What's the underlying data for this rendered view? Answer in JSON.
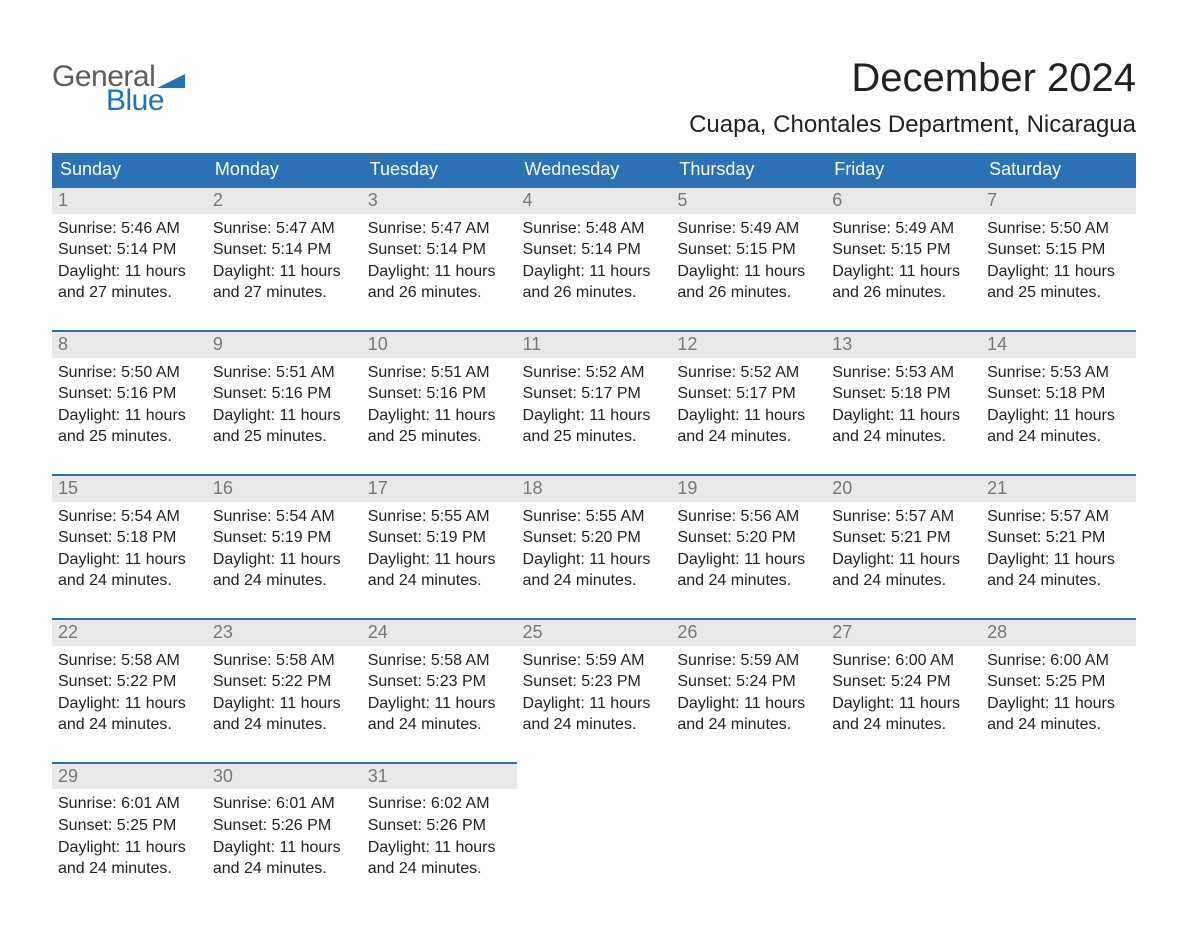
{
  "logo": {
    "line1": "General",
    "line2": "Blue"
  },
  "header": {
    "month_title": "December 2024",
    "location": "Cuapa, Chontales Department, Nicaragua"
  },
  "calendar": {
    "day_headers": [
      "Sunday",
      "Monday",
      "Tuesday",
      "Wednesday",
      "Thursday",
      "Friday",
      "Saturday"
    ],
    "labels": {
      "sunrise": "Sunrise:",
      "sunset": "Sunset:",
      "daylight": "Daylight:"
    },
    "start_day_index": 0,
    "days": [
      {
        "n": 1,
        "sunrise": "5:46 AM",
        "sunset": "5:14 PM",
        "daylight": "11 hours and 27 minutes."
      },
      {
        "n": 2,
        "sunrise": "5:47 AM",
        "sunset": "5:14 PM",
        "daylight": "11 hours and 27 minutes."
      },
      {
        "n": 3,
        "sunrise": "5:47 AM",
        "sunset": "5:14 PM",
        "daylight": "11 hours and 26 minutes."
      },
      {
        "n": 4,
        "sunrise": "5:48 AM",
        "sunset": "5:14 PM",
        "daylight": "11 hours and 26 minutes."
      },
      {
        "n": 5,
        "sunrise": "5:49 AM",
        "sunset": "5:15 PM",
        "daylight": "11 hours and 26 minutes."
      },
      {
        "n": 6,
        "sunrise": "5:49 AM",
        "sunset": "5:15 PM",
        "daylight": "11 hours and 26 minutes."
      },
      {
        "n": 7,
        "sunrise": "5:50 AM",
        "sunset": "5:15 PM",
        "daylight": "11 hours and 25 minutes."
      },
      {
        "n": 8,
        "sunrise": "5:50 AM",
        "sunset": "5:16 PM",
        "daylight": "11 hours and 25 minutes."
      },
      {
        "n": 9,
        "sunrise": "5:51 AM",
        "sunset": "5:16 PM",
        "daylight": "11 hours and 25 minutes."
      },
      {
        "n": 10,
        "sunrise": "5:51 AM",
        "sunset": "5:16 PM",
        "daylight": "11 hours and 25 minutes."
      },
      {
        "n": 11,
        "sunrise": "5:52 AM",
        "sunset": "5:17 PM",
        "daylight": "11 hours and 25 minutes."
      },
      {
        "n": 12,
        "sunrise": "5:52 AM",
        "sunset": "5:17 PM",
        "daylight": "11 hours and 24 minutes."
      },
      {
        "n": 13,
        "sunrise": "5:53 AM",
        "sunset": "5:18 PM",
        "daylight": "11 hours and 24 minutes."
      },
      {
        "n": 14,
        "sunrise": "5:53 AM",
        "sunset": "5:18 PM",
        "daylight": "11 hours and 24 minutes."
      },
      {
        "n": 15,
        "sunrise": "5:54 AM",
        "sunset": "5:18 PM",
        "daylight": "11 hours and 24 minutes."
      },
      {
        "n": 16,
        "sunrise": "5:54 AM",
        "sunset": "5:19 PM",
        "daylight": "11 hours and 24 minutes."
      },
      {
        "n": 17,
        "sunrise": "5:55 AM",
        "sunset": "5:19 PM",
        "daylight": "11 hours and 24 minutes."
      },
      {
        "n": 18,
        "sunrise": "5:55 AM",
        "sunset": "5:20 PM",
        "daylight": "11 hours and 24 minutes."
      },
      {
        "n": 19,
        "sunrise": "5:56 AM",
        "sunset": "5:20 PM",
        "daylight": "11 hours and 24 minutes."
      },
      {
        "n": 20,
        "sunrise": "5:57 AM",
        "sunset": "5:21 PM",
        "daylight": "11 hours and 24 minutes."
      },
      {
        "n": 21,
        "sunrise": "5:57 AM",
        "sunset": "5:21 PM",
        "daylight": "11 hours and 24 minutes."
      },
      {
        "n": 22,
        "sunrise": "5:58 AM",
        "sunset": "5:22 PM",
        "daylight": "11 hours and 24 minutes."
      },
      {
        "n": 23,
        "sunrise": "5:58 AM",
        "sunset": "5:22 PM",
        "daylight": "11 hours and 24 minutes."
      },
      {
        "n": 24,
        "sunrise": "5:58 AM",
        "sunset": "5:23 PM",
        "daylight": "11 hours and 24 minutes."
      },
      {
        "n": 25,
        "sunrise": "5:59 AM",
        "sunset": "5:23 PM",
        "daylight": "11 hours and 24 minutes."
      },
      {
        "n": 26,
        "sunrise": "5:59 AM",
        "sunset": "5:24 PM",
        "daylight": "11 hours and 24 minutes."
      },
      {
        "n": 27,
        "sunrise": "6:00 AM",
        "sunset": "5:24 PM",
        "daylight": "11 hours and 24 minutes."
      },
      {
        "n": 28,
        "sunrise": "6:00 AM",
        "sunset": "5:25 PM",
        "daylight": "11 hours and 24 minutes."
      },
      {
        "n": 29,
        "sunrise": "6:01 AM",
        "sunset": "5:25 PM",
        "daylight": "11 hours and 24 minutes."
      },
      {
        "n": 30,
        "sunrise": "6:01 AM",
        "sunset": "5:26 PM",
        "daylight": "11 hours and 24 minutes."
      },
      {
        "n": 31,
        "sunrise": "6:02 AM",
        "sunset": "5:26 PM",
        "daylight": "11 hours and 24 minutes."
      }
    ]
  },
  "style": {
    "header_bg": "#2a72b5",
    "header_text": "#ffffff",
    "accent_line": "#2a72b5",
    "daynum_bg": "#e9e9e9",
    "daynum_color": "#777777",
    "body_text": "#222222",
    "page_bg": "#ffffff",
    "logo_gray": "#5c5c5c",
    "logo_blue": "#1c74bb",
    "month_title_fontsize": 40,
    "location_fontsize": 24,
    "dayheader_fontsize": 18,
    "daynum_fontsize": 18,
    "body_fontsize": 16
  }
}
